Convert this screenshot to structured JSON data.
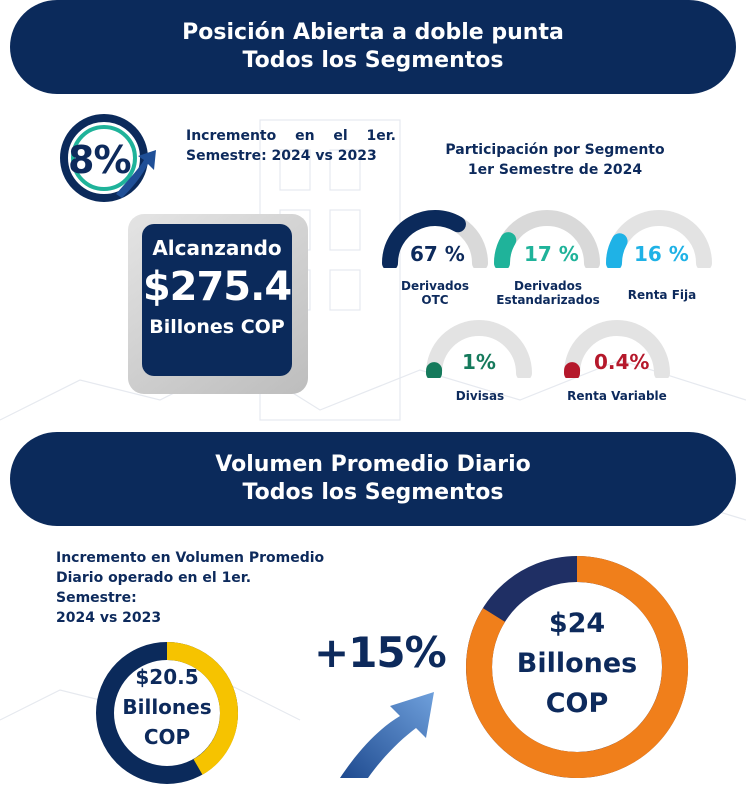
{
  "section1": {
    "title_line1": "Posición Abierta a doble punta",
    "title_line2": "Todos los Segmentos",
    "increment_pct": "8%",
    "increment_note": "Incremento en el 1er. Semestre: 2024 vs 2023",
    "total_top": "Alcanzando",
    "total_value": "$275.4",
    "total_unit": "Billones COP",
    "segments_title_line1": "Participación por Segmento",
    "segments_title_line2": "1er Semestre de 2024",
    "segments": [
      {
        "value": "67 %",
        "share": 0.67,
        "label_line1": "Derivados",
        "label_line2": "OTC",
        "color": "#0b2a5b"
      },
      {
        "value": "17 %",
        "share": 0.17,
        "label_line1": "Derivados",
        "label_line2": "Estandarizados",
        "color": "#1fb39a"
      },
      {
        "value": "16 %",
        "share": 0.16,
        "label_line1": "Renta Fija",
        "label_line2": "",
        "color": "#1fb2e6"
      },
      {
        "value": "1%",
        "share": 0.01,
        "label_line1": "Divisas",
        "label_line2": "",
        "color": "#157a5c"
      },
      {
        "value": "0.4%",
        "share": 0.004,
        "label_line1": "Renta Variable",
        "label_line2": "",
        "color": "#b5182b"
      }
    ]
  },
  "section2": {
    "title_line1": "Volumen Promedio Diario",
    "title_line2": "Todos los Segmentos",
    "note_line1": "Incremento en Volumen Promedio",
    "note_line2": "Diario operado en el 1er. Semestre:",
    "note_line3": "2024 vs 2023",
    "prev_value": "$20.5",
    "prev_unit_line1": "Billones",
    "prev_unit_line2": "COP",
    "growth": "+15%",
    "curr_value": "$24",
    "curr_unit_line1": "Billones",
    "curr_unit_line2": "COP"
  },
  "colors": {
    "navy": "#0b2a5b",
    "gold": "#f6c300",
    "orange": "#f07f1b",
    "gray_track": "#d9d9d9"
  }
}
